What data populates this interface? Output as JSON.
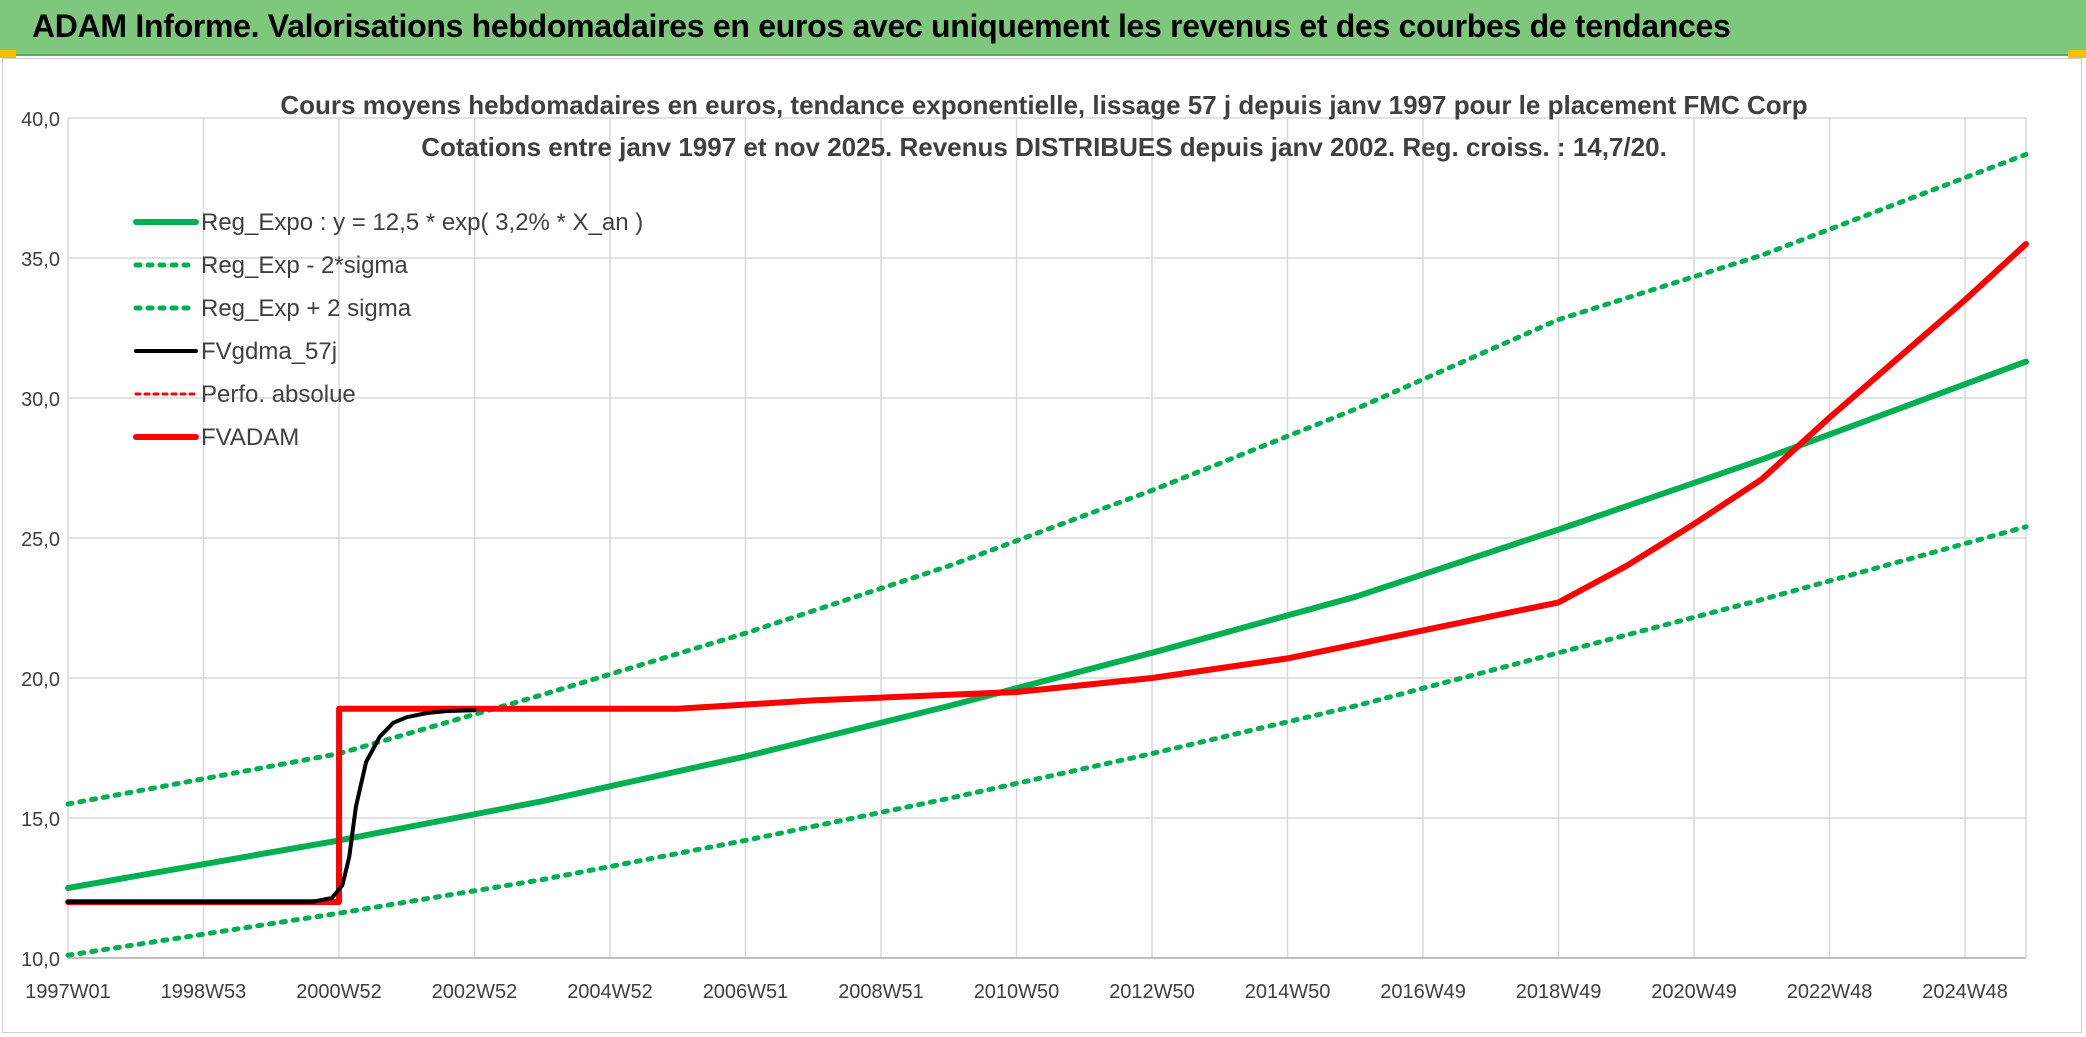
{
  "banner": {
    "title": "ADAM Informe. Valorisations hebdomadaires en euros avec uniquement les revenus et des courbes de tendances"
  },
  "colors": {
    "banner": "#7dc87d",
    "green": "#00b050",
    "red": "#ff0000",
    "black": "#000000",
    "grid": "#d9d9d9"
  },
  "chart_data": {
    "type": "line",
    "title": "Cours moyens hebdomadaires en euros, tendance exponentielle, lissage 57 j depuis janv 1997 pour le placement FMC Corp",
    "subtitle": "Cotations entre janv 1997 et nov 2025. Revenus DISTRIBUES depuis janv 2002. Reg. croiss. : 14,7/20.",
    "xlabel": "",
    "ylabel": "",
    "x_range": [
      1997.0,
      2025.9
    ],
    "ylim": [
      10,
      40
    ],
    "grid": true,
    "legend_position": "top-left",
    "y_ticks": [
      "10,0",
      "15,0",
      "20,0",
      "25,0",
      "30,0",
      "35,0",
      "40,0"
    ],
    "x_ticks": [
      {
        "label": "1997W01",
        "x": 1997.0
      },
      {
        "label": "1998W53",
        "x": 1999.0
      },
      {
        "label": "2000W52",
        "x": 2001.0
      },
      {
        "label": "2002W52",
        "x": 2003.0
      },
      {
        "label": "2004W52",
        "x": 2005.0
      },
      {
        "label": "2006W51",
        "x": 2007.0
      },
      {
        "label": "2008W51",
        "x": 2009.0
      },
      {
        "label": "2010W50",
        "x": 2011.0
      },
      {
        "label": "2012W50",
        "x": 2013.0
      },
      {
        "label": "2014W50",
        "x": 2015.0
      },
      {
        "label": "2016W49",
        "x": 2017.0
      },
      {
        "label": "2018W49",
        "x": 2019.0
      },
      {
        "label": "2020W49",
        "x": 2021.0
      },
      {
        "label": "2022W48",
        "x": 2023.0
      },
      {
        "label": "2024W48",
        "x": 2025.0
      }
    ],
    "series": [
      {
        "name": "Reg_Expo : y = 12,5 * exp( 3,2% *  X_an )",
        "style": "solid",
        "color": "#00b050",
        "width": 6,
        "x": [
          1997.0,
          2001.0,
          2004.0,
          2007.0,
          2010.0,
          2013.0,
          2016.0,
          2019.0,
          2022.0,
          2025.9
        ],
        "y": [
          12.5,
          14.2,
          15.6,
          17.2,
          19.0,
          20.9,
          22.9,
          25.3,
          27.8,
          31.3
        ]
      },
      {
        "name": "Reg_Exp - 2*sigma",
        "style": "dotted",
        "color": "#00b050",
        "width": 5,
        "x": [
          1997.0,
          2001.0,
          2004.0,
          2007.0,
          2010.0,
          2013.0,
          2016.0,
          2019.0,
          2022.0,
          2025.9
        ],
        "y": [
          10.1,
          11.6,
          12.8,
          14.2,
          15.7,
          17.3,
          19.0,
          20.9,
          22.8,
          25.4
        ]
      },
      {
        "name": "Reg_Exp + 2 sigma",
        "style": "dotted",
        "color": "#00b050",
        "width": 5,
        "x": [
          1997.0,
          2001.0,
          2004.0,
          2007.0,
          2010.0,
          2013.0,
          2016.0,
          2019.0,
          2022.0,
          2025.9
        ],
        "y": [
          15.5,
          17.3,
          19.4,
          21.6,
          24.0,
          26.7,
          29.6,
          32.8,
          35.1,
          38.7
        ]
      },
      {
        "name": "FVgdma_57j",
        "style": "solid",
        "color": "#000000",
        "width": 4,
        "x": [
          1997.0,
          2000.6,
          2000.9,
          2001.05,
          2001.15,
          2001.25,
          2001.4,
          2001.6,
          2001.8,
          2002.0,
          2002.3,
          2002.6,
          2003.0
        ],
        "y": [
          12.0,
          12.0,
          12.15,
          12.6,
          13.6,
          15.4,
          17.0,
          17.9,
          18.4,
          18.6,
          18.75,
          18.82,
          18.85
        ]
      },
      {
        "name": "Perfo. absolue",
        "style": "dotted",
        "color": "#ff0000",
        "width": 3,
        "x": [
          1997.0,
          2001.0,
          2001.001,
          2006.0,
          2008.0,
          2011.0,
          2013.0,
          2015.0,
          2017.0,
          2019.0,
          2020.0,
          2021.0,
          2022.0,
          2023.0,
          2024.0,
          2025.0,
          2025.9
        ],
        "y": [
          12.0,
          12.0,
          18.9,
          18.9,
          19.2,
          19.5,
          20.0,
          20.7,
          21.7,
          22.7,
          24.0,
          25.5,
          27.1,
          29.3,
          31.4,
          33.5,
          35.5
        ]
      },
      {
        "name": "FVADAM",
        "style": "solid",
        "color": "#ff0000",
        "width": 6,
        "x": [
          1997.0,
          2001.0,
          2001.001,
          2006.0,
          2008.0,
          2011.0,
          2013.0,
          2015.0,
          2017.0,
          2019.0,
          2020.0,
          2021.0,
          2022.0,
          2023.0,
          2024.0,
          2025.0,
          2025.9
        ],
        "y": [
          12.0,
          12.0,
          18.9,
          18.9,
          19.2,
          19.5,
          20.0,
          20.7,
          21.7,
          22.7,
          24.0,
          25.5,
          27.1,
          29.3,
          31.4,
          33.5,
          35.5
        ]
      }
    ]
  }
}
